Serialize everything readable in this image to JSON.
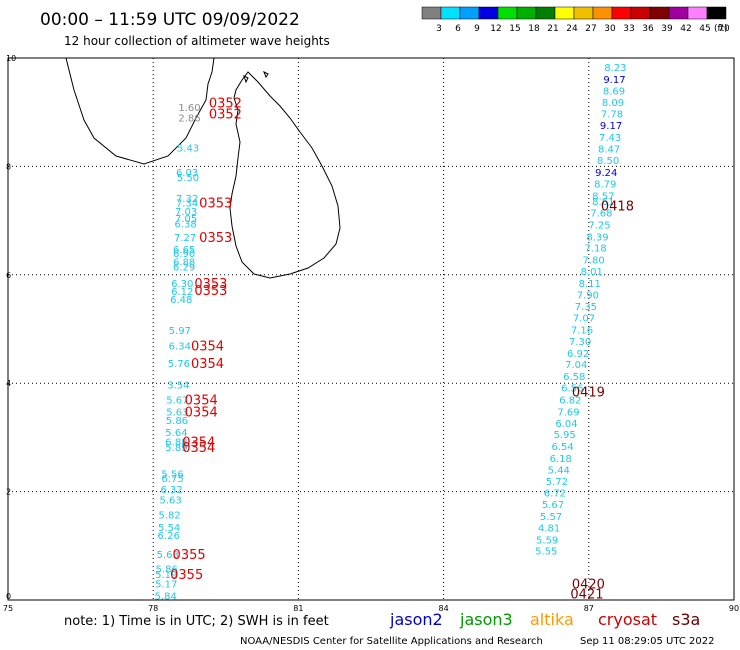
{
  "header": {
    "title": "00:00 – 11:59 UTC 09/09/2022",
    "subtitle": "12 hour collection of altimeter wave heights"
  },
  "colorbar": {
    "labels": [
      "3",
      "6",
      "9",
      "12",
      "15",
      "18",
      "21",
      "24",
      "27",
      "30",
      "33",
      "36",
      "39",
      "42",
      "45",
      "70"
    ],
    "unit": "(ft)",
    "colors": [
      "#808080",
      "#00e0ff",
      "#00a0ff",
      "#0000e0",
      "#00e000",
      "#00b000",
      "#008000",
      "#ffff00",
      "#f0c000",
      "#ff9000",
      "#ff0000",
      "#c80000",
      "#800000",
      "#a000a0",
      "#ff80ff",
      "#000000"
    ]
  },
  "footer": {
    "note": "note: 1) Time is in UTC; 2) SWH is in feet",
    "legend": [
      {
        "name": "jason2",
        "color": "#0000cc"
      },
      {
        "name": "jason3",
        "color": "#009900"
      },
      {
        "name": "altika",
        "color": "#ff9900"
      },
      {
        "name": "cryosat",
        "color": "#cc0000"
      },
      {
        "name": "s3a",
        "color": "#660000"
      }
    ],
    "credit": "NOAA/NESDIS Center for Satellite Applications and Research",
    "timestamp": "Sep 11 08:29:05 UTC 2022"
  },
  "chart_data": {
    "type": "scatter",
    "xlim": [
      75,
      90
    ],
    "ylim": [
      0,
      10
    ],
    "xticks": [
      "75",
      "78",
      "81",
      "84",
      "87",
      "90"
    ],
    "yticks": [
      "0",
      "2",
      "4",
      "6",
      "8",
      "10"
    ],
    "grid": true,
    "swh_colors": {
      "gray": "#8c8c8c",
      "cyan": "#20c8e8",
      "blue": "#0000d0"
    },
    "pass_colors": {
      "cryosat": "#e00000",
      "s3a": "#7a0000"
    },
    "observations": [
      {
        "x": 78.75,
        "y": 9.1,
        "v": "1.60",
        "c": "gray"
      },
      {
        "x": 78.75,
        "y": 8.9,
        "v": "2.86",
        "c": "gray"
      },
      {
        "x": 78.72,
        "y": 8.35,
        "v": "5.43",
        "c": "cyan"
      },
      {
        "x": 78.7,
        "y": 7.9,
        "v": "6.03",
        "c": "cyan"
      },
      {
        "x": 78.72,
        "y": 7.8,
        "v": "5.50",
        "c": "cyan"
      },
      {
        "x": 78.7,
        "y": 7.42,
        "v": "7.32",
        "c": "cyan"
      },
      {
        "x": 78.7,
        "y": 7.33,
        "v": "7.34",
        "c": "cyan"
      },
      {
        "x": 78.68,
        "y": 7.18,
        "v": "7.03",
        "c": "cyan"
      },
      {
        "x": 78.68,
        "y": 7.05,
        "v": "7.05",
        "c": "cyan"
      },
      {
        "x": 78.67,
        "y": 6.95,
        "v": "6.38",
        "c": "cyan"
      },
      {
        "x": 78.66,
        "y": 6.7,
        "v": "7.27",
        "c": "cyan"
      },
      {
        "x": 78.64,
        "y": 6.48,
        "v": "6.65",
        "c": "cyan"
      },
      {
        "x": 78.64,
        "y": 6.4,
        "v": "6.90",
        "c": "cyan"
      },
      {
        "x": 78.64,
        "y": 6.25,
        "v": "6.88",
        "c": "cyan"
      },
      {
        "x": 78.64,
        "y": 6.15,
        "v": "6.29",
        "c": "cyan"
      },
      {
        "x": 78.6,
        "y": 5.85,
        "v": "6.30",
        "c": "cyan"
      },
      {
        "x": 78.6,
        "y": 5.7,
        "v": "6.12",
        "c": "cyan"
      },
      {
        "x": 78.58,
        "y": 5.55,
        "v": "6.48",
        "c": "cyan"
      },
      {
        "x": 78.55,
        "y": 4.98,
        "v": "5.97",
        "c": "cyan"
      },
      {
        "x": 78.55,
        "y": 4.7,
        "v": "6.34",
        "c": "cyan"
      },
      {
        "x": 78.53,
        "y": 4.37,
        "v": "5.76",
        "c": "cyan"
      },
      {
        "x": 78.52,
        "y": 3.98,
        "v": "3.54",
        "c": "cyan"
      },
      {
        "x": 78.5,
        "y": 3.7,
        "v": "5.67",
        "c": "cyan"
      },
      {
        "x": 78.5,
        "y": 3.48,
        "v": "5.63",
        "c": "cyan"
      },
      {
        "x": 78.49,
        "y": 3.32,
        "v": "5.86",
        "c": "cyan"
      },
      {
        "x": 78.48,
        "y": 3.1,
        "v": "5.64",
        "c": "cyan"
      },
      {
        "x": 78.48,
        "y": 2.92,
        "v": "6.88",
        "c": "cyan"
      },
      {
        "x": 78.48,
        "y": 2.82,
        "v": "5.89",
        "c": "cyan"
      },
      {
        "x": 78.4,
        "y": 2.33,
        "v": "5.56",
        "c": "cyan"
      },
      {
        "x": 78.4,
        "y": 2.25,
        "v": "6.75",
        "c": "cyan"
      },
      {
        "x": 78.38,
        "y": 2.05,
        "v": "6.32",
        "c": "cyan"
      },
      {
        "x": 78.36,
        "y": 1.85,
        "v": "5.63",
        "c": "cyan"
      },
      {
        "x": 78.34,
        "y": 1.58,
        "v": "5.82",
        "c": "cyan"
      },
      {
        "x": 78.33,
        "y": 1.35,
        "v": "5.54",
        "c": "cyan"
      },
      {
        "x": 78.32,
        "y": 1.2,
        "v": "6.26",
        "c": "cyan"
      },
      {
        "x": 78.3,
        "y": 0.85,
        "v": "5.63",
        "c": "cyan"
      },
      {
        "x": 78.28,
        "y": 0.58,
        "v": "5.86",
        "c": "cyan"
      },
      {
        "x": 78.27,
        "y": 0.48,
        "v": "5.19",
        "c": "cyan"
      },
      {
        "x": 78.27,
        "y": 0.3,
        "v": "5.17",
        "c": "cyan"
      },
      {
        "x": 78.26,
        "y": 0.08,
        "v": "5.84",
        "c": "cyan"
      },
      {
        "x": 87.55,
        "y": 9.83,
        "v": "8.23",
        "c": "cyan"
      },
      {
        "x": 87.53,
        "y": 9.61,
        "v": "9.17",
        "c": "blue"
      },
      {
        "x": 87.52,
        "y": 9.4,
        "v": "8.69",
        "c": "cyan"
      },
      {
        "x": 87.5,
        "y": 9.19,
        "v": "8.09",
        "c": "cyan"
      },
      {
        "x": 87.48,
        "y": 8.98,
        "v": "7.78",
        "c": "cyan"
      },
      {
        "x": 87.46,
        "y": 8.76,
        "v": "9.17",
        "c": "blue"
      },
      {
        "x": 87.44,
        "y": 8.54,
        "v": "7.43",
        "c": "cyan"
      },
      {
        "x": 87.42,
        "y": 8.33,
        "v": "8.47",
        "c": "cyan"
      },
      {
        "x": 87.4,
        "y": 8.12,
        "v": "8.50",
        "c": "cyan"
      },
      {
        "x": 87.36,
        "y": 7.9,
        "v": "9.24",
        "c": "blue"
      },
      {
        "x": 87.34,
        "y": 7.68,
        "v": "8.79",
        "c": "cyan"
      },
      {
        "x": 87.3,
        "y": 7.46,
        "v": "8.57",
        "c": "cyan"
      },
      {
        "x": 87.3,
        "y": 7.36,
        "v": "8.61",
        "c": "cyan"
      },
      {
        "x": 87.26,
        "y": 7.15,
        "v": "7.68",
        "c": "cyan"
      },
      {
        "x": 87.22,
        "y": 6.93,
        "v": "7.25",
        "c": "cyan"
      },
      {
        "x": 87.18,
        "y": 6.71,
        "v": "8.39",
        "c": "cyan"
      },
      {
        "x": 87.14,
        "y": 6.5,
        "v": "7.18",
        "c": "cyan"
      },
      {
        "x": 87.1,
        "y": 6.28,
        "v": "7.80",
        "c": "cyan"
      },
      {
        "x": 87.06,
        "y": 6.07,
        "v": "8.01",
        "c": "cyan"
      },
      {
        "x": 87.02,
        "y": 5.85,
        "v": "8.11",
        "c": "cyan"
      },
      {
        "x": 86.98,
        "y": 5.64,
        "v": "7.90",
        "c": "cyan"
      },
      {
        "x": 86.94,
        "y": 5.42,
        "v": "7.35",
        "c": "cyan"
      },
      {
        "x": 86.9,
        "y": 5.21,
        "v": "7.07",
        "c": "cyan"
      },
      {
        "x": 86.86,
        "y": 4.99,
        "v": "7.16",
        "c": "cyan"
      },
      {
        "x": 86.82,
        "y": 4.78,
        "v": "7.30",
        "c": "cyan"
      },
      {
        "x": 86.78,
        "y": 4.56,
        "v": "6.92",
        "c": "cyan"
      },
      {
        "x": 86.74,
        "y": 4.35,
        "v": "7.04",
        "c": "cyan"
      },
      {
        "x": 86.7,
        "y": 4.13,
        "v": "6.58",
        "c": "cyan"
      },
      {
        "x": 86.66,
        "y": 3.92,
        "v": "6.56",
        "c": "cyan"
      },
      {
        "x": 86.62,
        "y": 3.7,
        "v": "6.82",
        "c": "cyan"
      },
      {
        "x": 86.58,
        "y": 3.48,
        "v": "7.69",
        "c": "cyan"
      },
      {
        "x": 86.54,
        "y": 3.27,
        "v": "6.04",
        "c": "cyan"
      },
      {
        "x": 86.5,
        "y": 3.06,
        "v": "5.95",
        "c": "cyan"
      },
      {
        "x": 86.46,
        "y": 2.84,
        "v": "6.54",
        "c": "cyan"
      },
      {
        "x": 86.42,
        "y": 2.62,
        "v": "6.18",
        "c": "cyan"
      },
      {
        "x": 86.38,
        "y": 2.41,
        "v": "5.44",
        "c": "cyan"
      },
      {
        "x": 86.34,
        "y": 2.2,
        "v": "5.72",
        "c": "cyan"
      },
      {
        "x": 86.3,
        "y": 1.98,
        "v": "6.72",
        "c": "cyan"
      },
      {
        "x": 86.26,
        "y": 1.77,
        "v": "5.67",
        "c": "cyan"
      },
      {
        "x": 86.22,
        "y": 1.55,
        "v": "5.57",
        "c": "cyan"
      },
      {
        "x": 86.18,
        "y": 1.34,
        "v": "4.81",
        "c": "cyan"
      },
      {
        "x": 86.14,
        "y": 1.12,
        "v": "5.59",
        "c": "cyan"
      },
      {
        "x": 86.12,
        "y": 0.91,
        "v": "5.55",
        "c": "cyan"
      }
    ],
    "pass_times": [
      {
        "x": 79.15,
        "y": 9.18,
        "t": "0352",
        "sat": "cryosat"
      },
      {
        "x": 79.15,
        "y": 8.98,
        "t": "0352",
        "sat": "cryosat"
      },
      {
        "x": 78.95,
        "y": 7.33,
        "t": "0353",
        "sat": "cryosat"
      },
      {
        "x": 78.95,
        "y": 6.7,
        "t": "0353",
        "sat": "cryosat"
      },
      {
        "x": 78.85,
        "y": 5.85,
        "t": "0353",
        "sat": "cryosat"
      },
      {
        "x": 78.85,
        "y": 5.72,
        "t": "0353",
        "sat": "cryosat"
      },
      {
        "x": 78.78,
        "y": 4.7,
        "t": "0354",
        "sat": "cryosat"
      },
      {
        "x": 78.78,
        "y": 4.37,
        "t": "0354",
        "sat": "cryosat"
      },
      {
        "x": 78.65,
        "y": 3.7,
        "t": "0354",
        "sat": "cryosat"
      },
      {
        "x": 78.65,
        "y": 3.48,
        "t": "0354",
        "sat": "cryosat"
      },
      {
        "x": 78.6,
        "y": 2.92,
        "t": "0354",
        "sat": "cryosat"
      },
      {
        "x": 78.6,
        "y": 2.82,
        "t": "0354",
        "sat": "cryosat"
      },
      {
        "x": 78.4,
        "y": 0.85,
        "t": "0355",
        "sat": "cryosat"
      },
      {
        "x": 78.35,
        "y": 0.48,
        "t": "0355",
        "sat": "cryosat"
      },
      {
        "x": 87.25,
        "y": 7.28,
        "t": "0418",
        "sat": "s3a"
      },
      {
        "x": 86.65,
        "y": 3.85,
        "t": "0419",
        "sat": "s3a"
      },
      {
        "x": 86.65,
        "y": 0.3,
        "t": "0420",
        "sat": "s3a"
      },
      {
        "x": 86.62,
        "y": 0.12,
        "t": "0421",
        "sat": "s3a"
      }
    ]
  }
}
